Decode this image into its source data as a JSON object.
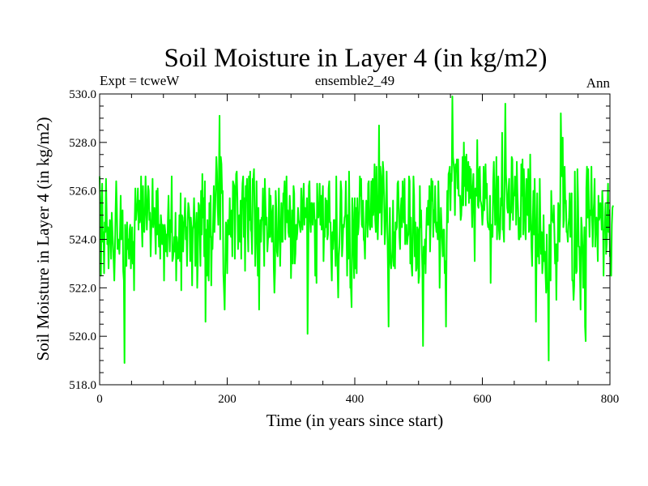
{
  "chart_data": {
    "type": "line",
    "title": "Soil Moisture in Layer 4 (in kg/m2)",
    "subtitle_left": "Expt = tcweW",
    "subtitle_center": "ensemble2_49",
    "subtitle_right": "Ann",
    "xlabel": "Time (in years since start)",
    "ylabel": "Soil Moisture in Layer 4 (in kg/m2)",
    "xlim": [
      0,
      800
    ],
    "ylim": [
      518.0,
      530.0
    ],
    "xticks": [
      0,
      200,
      400,
      600,
      800
    ],
    "xtick_labels": [
      "0",
      "200",
      "400",
      "600",
      "800"
    ],
    "yticks": [
      518,
      520,
      522,
      524,
      526,
      528,
      530
    ],
    "ytick_labels": [
      "518.0",
      "520.0",
      "522.0",
      "524.0",
      "526.0",
      "528.0",
      "530.0"
    ],
    "grid": false,
    "series": [
      {
        "name": "ensemble2_49",
        "color": "#00ff00",
        "x_start": 0,
        "x_step": 1,
        "values": [
          526.6,
          525.4,
          522.5,
          524.8,
          526.3,
          523.9,
          524.3,
          522.6,
          524.7,
          524.3,
          526.5,
          525.1,
          523.8,
          524.5,
          522.8,
          523.9,
          524.8,
          524.6,
          523.2,
          525.1,
          524.4,
          523.8,
          523.1,
          522.3,
          523.5,
          525.2,
          526.4,
          525.3,
          523.6,
          524.0,
          523.8,
          523.4,
          524.4,
          525.8,
          524.0,
          524.5,
          525.2,
          522.7,
          522.3,
          518.9,
          524.6,
          523.7,
          522.9,
          524.7,
          523.6,
          524.0,
          523.2,
          524.4,
          524.6,
          522.8,
          523.8,
          524.5,
          523.0,
          523.9,
          521.9,
          524.7,
          526.1,
          524.8,
          525.2,
          525.4,
          526.1,
          524.4,
          525.6,
          524.7,
          524.9,
          526.6,
          524.6,
          523.7,
          526.2,
          524.5,
          524.3,
          525.1,
          526.6,
          525.5,
          524.4,
          525.2,
          526.2,
          526.0,
          524.8,
          525.1,
          523.3,
          524.4,
          524.9,
          526.5,
          524.5,
          525.2,
          525.3,
          524.4,
          523.4,
          526.0,
          524.2,
          526.1,
          524.8,
          523.7,
          524.6,
          523.2,
          525.0,
          524.6,
          523.8,
          524.6,
          524.5,
          522.3,
          524.6,
          524.3,
          523.5,
          524.2,
          523.3,
          524.8,
          525.8,
          524.3,
          523.5,
          524.8,
          524.3,
          526.6,
          523.1,
          523.2,
          523.5,
          524.1,
          523.5,
          525.1,
          522.3,
          524.1,
          523.8,
          523.2,
          523.3,
          525.0,
          523.1,
          525.9,
          521.9,
          525.0,
          524.9,
          523.5,
          524.5,
          524.8,
          525.7,
          524.0,
          524.5,
          522.9,
          524.8,
          525.5,
          525.3,
          524.7,
          523.1,
          524.9,
          524.4,
          522.1,
          524.4,
          524.6,
          525.7,
          524.6,
          522.9,
          524.2,
          525.1,
          522.0,
          523.1,
          525.5,
          525.4,
          524.3,
          522.9,
          526.0,
          524.2,
          526.7,
          524.9,
          525.7,
          523.3,
          526.4,
          520.6,
          524.4,
          522.5,
          524.8,
          522.8,
          522.3,
          525.5,
          524.1,
          525.8,
          522.1,
          524.1,
          523.6,
          524.8,
          526.2,
          524.3,
          525.1,
          526.1,
          527.4,
          526.8,
          525.4,
          524.6,
          526.5,
          529.1,
          524.0,
          527.4,
          527.1,
          525.9,
          526.0,
          522.6,
          521.9,
          521.1,
          522.9,
          524.7,
          524.4,
          522.6,
          524.8,
          524.8,
          524.2,
          525.7,
          524.3,
          524.1,
          525.2,
          523.3,
          526.4,
          526.3,
          526.2,
          523.2,
          525.5,
          526.7,
          526.8,
          525.7,
          523.6,
          524.6,
          525.0,
          523.9,
          525.6,
          523.2,
          525.4,
          526.3,
          526.6,
          524.1,
          525.7,
          522.7,
          526.2,
          525.6,
          526.5,
          524.5,
          523.5,
          526.6,
          524.8,
          526.8,
          524.4,
          524.3,
          523.4,
          526.5,
          526.5,
          526.9,
          525.0,
          522.9,
          524.2,
          526.4,
          524.3,
          522.5,
          525.3,
          521.1,
          524.0,
          524.8,
          523.9,
          524.9,
          524.8,
          526.1,
          524.3,
          522.9,
          526.5,
          525.4,
          524.6,
          524.9,
          523.5,
          524.0,
          524.1,
          526.1,
          524.1,
          525.8,
          524.8,
          523.9,
          525.1,
          525.4,
          522.8,
          521.8,
          522.7,
          526.0,
          525.3,
          523.5,
          523.3,
          524.2,
          526.1,
          524.5,
          522.9,
          524.3,
          525.5,
          523.9,
          523.9,
          525.9,
          525.8,
          526.4,
          524.0,
          525.3,
          526.6,
          524.7,
          525.2,
          524.3,
          524.1,
          525.8,
          525.2,
          522.4,
          523.7,
          525.2,
          523.0,
          526.2,
          525.9,
          523.0,
          523.4,
          524.6,
          524.0,
          524.3,
          525.3,
          524.8,
          524.7,
          524.5,
          524.3,
          526.1,
          524.8,
          524.4,
          525.7,
          526.3,
          524.6,
          525.3,
          525.2,
          524.9,
          525.7,
          520.1,
          522.9,
          526.2,
          526.4,
          524.8,
          524.3,
          525.5,
          525.5,
          524.6,
          525.4,
          525.5,
          524.8,
          522.5,
          524.8,
          522.2,
          526.3,
          525.2,
          524.9,
          525.2,
          526.3,
          524.6,
          525.8,
          524.4,
          525.5,
          526.2,
          523.1,
          524.4,
          524.1,
          525.7,
          524.5,
          525.6,
          524.0,
          524.2,
          526.1,
          526.4,
          524.7,
          524.7,
          523.2,
          522.3,
          524.3,
          523.6,
          524.8,
          524.8,
          523.9,
          522.9,
          526.6,
          524.3,
          522.8,
          521.6,
          523.3,
          523.8,
          524.9,
          526.4,
          526.0,
          523.3,
          523.8,
          524.6,
          524.5,
          524.9,
          525.0,
          526.4,
          524.6,
          522.5,
          525.0,
          523.2,
          526.8,
          524.7,
          522.0,
          522.0,
          521.2,
          525.7,
          525.1,
          523.4,
          522.4,
          525.7,
          522.8,
          525.3,
          522.6,
          525.7,
          524.2,
          524.5,
          525.1,
          526.6,
          525.8,
          526.5,
          524.6,
          524.5,
          525.6,
          524.0,
          523.9,
          523.2,
          524.7,
          525.6,
          525.5,
          524.1,
          526.3,
          526.4,
          524.6,
          524.4,
          524.8,
          526.4,
          524.5,
          526.5,
          525.0,
          525.5,
          527.1,
          524.8,
          524.3,
          527.0,
          525.1,
          524.0,
          525.2,
          528.7,
          525.1,
          527.0,
          526.6,
          524.2,
          525.5,
          527.2,
          526.8,
          525.7,
          523.8,
          524.4,
          525.4,
          526.8,
          524.6,
          522.8,
          520.4,
          524.0,
          525.3,
          523.1,
          522.8,
          523.1,
          523.6,
          525.6,
          522.9,
          524.3,
          522.8,
          524.7,
          524.4,
          524.5,
          526.3,
          526.4,
          525.3,
          524.1,
          523.6,
          525.2,
          525.7,
          524.5,
          526.4,
          525.3,
          524.7,
          526.5,
          523.8,
          524.4,
          524.6,
          523.8,
          524.1,
          524.2,
          526.6,
          526.4,
          523.0,
          524.9,
          522.9,
          522.5,
          524.1,
          526.6,
          525.8,
          523.3,
          524.7,
          522.7,
          522.8,
          524.5,
          524.4,
          522.2,
          522.5,
          526.2,
          524.5,
          525.2,
          523.7,
          522.7,
          519.6,
          523.7,
          523.0,
          524.0,
          522.6,
          524.3,
          525.3,
          524.6,
          525.6,
          524.6,
          526.2,
          523.5,
          524.7,
          526.5,
          525.6,
          526.4,
          524.1,
          525.2,
          524.7,
          526.2,
          524.6,
          524.3,
          524.7,
          524.0,
          526.4,
          525.1,
          522.0,
          523.6,
          525.3,
          524.6,
          524.0,
          523.3,
          524.4,
          524.4,
          522.6,
          523.1,
          520.4,
          523.8,
          526.0,
          524.7,
          526.7,
          526.8,
          527.0,
          525.2,
          526.7,
          526.4,
          529.9,
          527.4,
          527.1,
          526.7,
          525.0,
          527.1,
          526.8,
          527.3,
          526.1,
          527.3,
          525.8,
          525.8,
          525.8,
          524.8,
          525.0,
          525.9,
          527.4,
          525.4,
          528.0,
          526.2,
          527.4,
          525.4,
          527.5,
          526.4,
          526.0,
          527.2,
          525.5,
          527.0,
          525.7,
          526.9,
          525.7,
          524.5,
          526.1,
          526.7,
          525.0,
          523.1,
          526.1,
          525.8,
          525.8,
          528.1,
          525.4,
          525.3,
          526.9,
          527.0,
          525.6,
          525.5,
          525.3,
          524.6,
          525.1,
          527.0,
          525.2,
          525.8,
          527.1,
          525.7,
          526.3,
          524.8,
          524.5,
          524.6,
          524.4,
          525.8,
          522.2,
          524.6,
          524.1,
          524.1,
          526.4,
          527.2,
          525.8,
          524.6,
          525.3,
          527.4,
          524.0,
          526.0,
          526.6,
          524.4,
          524.0,
          524.4,
          525.7,
          525.4,
          528.4,
          524.4,
          524.4,
          523.9,
          527.0,
          529.6,
          526.7,
          526.1,
          525.3,
          525.1,
          526.0,
          526.5,
          524.4,
          525.1,
          525.1,
          527.4,
          527.3,
          524.8,
          525.9,
          525.8,
          526.6,
          526.5,
          524.6,
          527.2,
          525.9,
          525.2,
          524.0,
          524.0,
          524.9,
          524.1,
          527.1,
          525.8,
          527.3,
          524.2,
          526.9,
          525.9,
          524.4,
          524.0,
          526.5,
          526.0,
          525.0,
          526.9,
          524.3,
          524.4,
          527.5,
          525.2,
          523.7,
          522.9,
          524.6,
          526.0,
          524.2,
          526.5,
          524.8,
          520.6,
          523.5,
          525.9,
          523.3,
          524.2,
          523.0,
          526.5,
          524.6,
          523.4,
          524.3,
          522.6,
          523.1,
          525.0,
          523.1,
          523.5,
          522.6,
          521.8,
          524.2,
          522.2,
          521.8,
          519.0,
          524.6,
          522.8,
          522.3,
          526.0,
          524.9,
          524.8,
          524.7,
          525.4,
          524.2,
          523.0,
          523.8,
          521.5,
          523.8,
          523.1,
          525.5,
          525.3,
          523.9,
          525.0,
          529.2,
          527.4,
          526.6,
          528.2,
          524.5,
          524.8,
          527.0,
          525.5,
          525.6,
          524.3,
          524.3,
          523.9,
          524.6,
          524.9,
          525.9,
          524.1,
          524.4,
          525.9,
          522.3,
          522.3,
          521.5,
          522.1,
          526.8,
          523.5,
          522.6,
          522.7,
          526.9,
          525.7,
          523.7,
          523.7,
          522.6,
          521.1,
          524.9,
          524.5,
          523.7,
          522.0,
          523.0,
          524.5,
          520.4,
          519.8,
          526.1,
          527.0,
          524.9,
          526.9,
          525.3,
          524.1,
          525.2,
          525.0,
          527.0,
          524.9,
          523.7,
          525.0,
          525.5,
          526.5,
          523.7,
          524.8,
          524.9,
          524.2,
          523.1,
          525.8,
          524.8,
          524.9,
          525.5,
          525.3,
          524.4,
          526.0,
          525.2,
          522.5,
          524.4,
          524.4,
          525.5,
          523.4,
          523.8,
          525.0,
          526.3,
          524.3,
          525.2,
          523.3,
          523.3,
          522.5,
          524.6,
          525.3,
          525.4
        ]
      }
    ]
  }
}
